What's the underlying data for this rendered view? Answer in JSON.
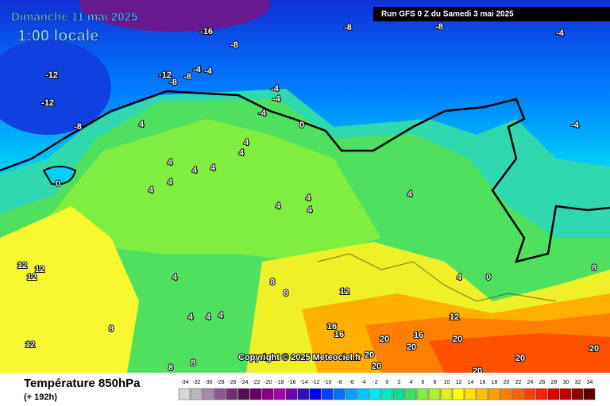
{
  "header": {
    "date": "Dimanche 11 mai 2025",
    "time": "1:00 locale"
  },
  "run_info": "Run GFS 0 Z du Samedi 3 mai 2025",
  "copyright": "Copyright © 2025 Meteociel.fr",
  "legend": {
    "title": "Température 850hPa",
    "subtitle": "(+ 192h)",
    "values": [
      -34,
      -32,
      -30,
      -28,
      -26,
      -24,
      -22,
      -20,
      -18,
      -16,
      -14,
      -12,
      -10,
      -8,
      -6,
      -4,
      -2,
      0,
      2,
      4,
      6,
      8,
      10,
      12,
      14,
      16,
      18,
      20,
      22,
      24,
      26,
      28,
      30,
      32,
      34
    ],
    "colors": [
      "#d8d8d8",
      "#b8b8b8",
      "#a888a8",
      "#905890",
      "#703070",
      "#501050",
      "#680068",
      "#880088",
      "#a800a8",
      "#7000b0",
      "#3010c0",
      "#0000f0",
      "#0040ff",
      "#0070ff",
      "#00a0ff",
      "#00c8ff",
      "#00e8f0",
      "#00e8c0",
      "#00e090",
      "#40e060",
      "#80f040",
      "#b0f030",
      "#e0f020",
      "#ffff00",
      "#ffe000",
      "#ffc000",
      "#ffa000",
      "#ff8000",
      "#ff6000",
      "#ff4000",
      "#ff2000",
      "#e00000",
      "#c00000",
      "#900000",
      "#600000"
    ]
  },
  "contour_labels": [
    "-16",
    "-8",
    "-8",
    "-8",
    "-4",
    "-12",
    "-8",
    "-4",
    "-4",
    "-8",
    "-12",
    "-12",
    "-8",
    "-4",
    "-4",
    "-4",
    "0",
    "-4",
    "4",
    "4",
    "4",
    "4",
    "4",
    "4",
    "4",
    "0",
    "4",
    "4",
    "4",
    "4",
    "4",
    "12",
    "12",
    "12",
    "8",
    "4",
    "4",
    "4",
    "4",
    "8",
    "8",
    "12",
    "16",
    "16",
    "20",
    "20",
    "16",
    "20",
    "20",
    "20",
    "20",
    "12",
    "8",
    "0",
    "4",
    "12",
    "8",
    "8",
    "20",
    "20"
  ]
}
